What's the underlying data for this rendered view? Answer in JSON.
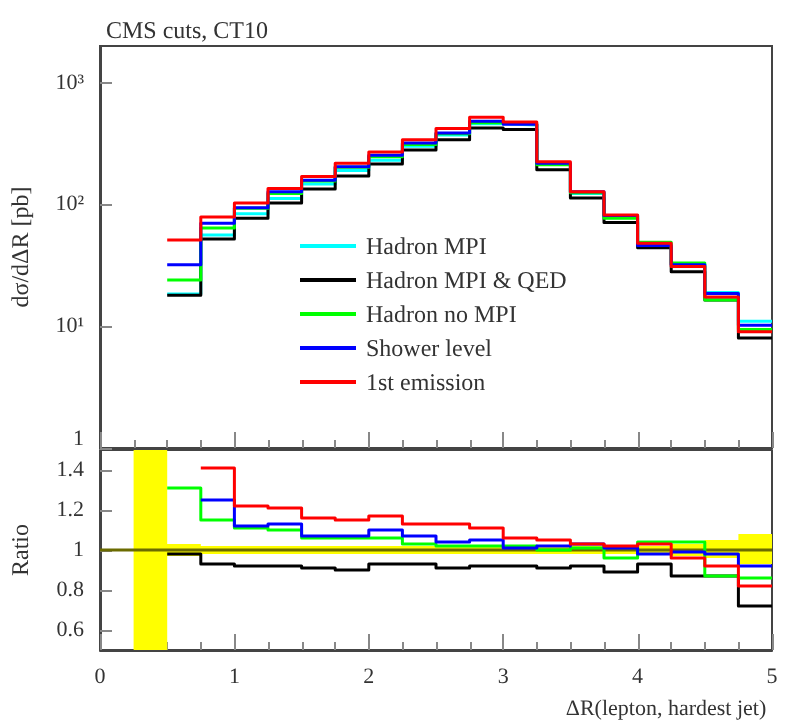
{
  "chart_data": [
    {
      "type": "histogram",
      "title": "CMS cuts, CT10",
      "ylabel": "dσ/dΔR [pb]",
      "log": "y",
      "legend": "bottom",
      "tick_labels": "y",
      "bins": [
        0.5,
        0.75,
        1,
        1.25,
        1.5,
        1.75,
        2,
        2.25,
        2.5,
        2.75,
        3,
        3.25,
        3.5,
        3.75,
        4,
        4.25,
        4.5,
        4.75,
        5
      ],
      "xlim": [
        0,
        5
      ],
      "xticks": [
        0,
        1,
        2,
        3,
        4,
        5
      ],
      "ylim": [
        1,
        2000
      ],
      "yticks": [
        {
          "value": 1,
          "label": "1"
        },
        {
          "value": 10,
          "label": "10¹"
        },
        {
          "value": 100,
          "label": "10²"
        },
        {
          "value": 1000,
          "label": "10³"
        }
      ],
      "series": [
        {
          "name": "Hadron MPI",
          "color": "#00ffff",
          "values": [
            18.4,
            56,
            84,
            112,
            147,
            190,
            231,
            300,
            371,
            460,
            450,
            213,
            123,
            80,
            47,
            32,
            18.9,
            11.0
          ]
        },
        {
          "name": "Hadron MPI & QED",
          "color": "#000000",
          "values": [
            18,
            52,
            77,
            103,
            134,
            171,
            215,
            280,
            339,
            425,
            413,
            193,
            113,
            71,
            44,
            28,
            16.4,
            8.0
          ]
        },
        {
          "name": "Hadron no MPI",
          "color": "#00ff00",
          "values": [
            24,
            64,
            93,
            123,
            156,
            202,
            246,
            310,
            380,
            468,
            458,
            212,
            125,
            77,
            49,
            33,
            16.4,
            9.4
          ]
        },
        {
          "name": "Shower level",
          "color": "#0000ff",
          "values": [
            32,
            70,
            94,
            127,
            158,
            204,
            253,
            320,
            386,
            482,
            456,
            218,
            127,
            81,
            46,
            32,
            18.6,
            10.2
          ]
        },
        {
          "name": "1st emission",
          "color": "#ff0000",
          "values": [
            51,
            79,
            103,
            135,
            170,
            218,
            270,
            339,
            420,
            520,
            476,
            224,
            127,
            82,
            48,
            31,
            17.4,
            9.0
          ]
        }
      ]
    },
    {
      "type": "step",
      "xlabel": "ΔR(lepton, hardest jet)",
      "ylabel": "Ratio",
      "xlim": [
        0,
        5
      ],
      "xticks": [
        0,
        1,
        2,
        3,
        4,
        5
      ],
      "ylim": [
        0.5,
        1.5
      ],
      "yticks": [
        0.6,
        0.8,
        1,
        1.2,
        1.4
      ],
      "series": [
        {
          "color": "#6b6b00",
          "x": [
            0,
            0.25,
            0.5,
            0.75,
            1,
            1.25,
            1.5,
            1.75,
            2,
            2.25,
            2.5,
            2.75,
            3,
            3.25,
            3.5,
            3.75,
            4,
            4.25,
            4.5,
            4.75,
            5
          ],
          "values": [
            1,
            1,
            1,
            1,
            1,
            1,
            1,
            1,
            1,
            1,
            1,
            1,
            1,
            1,
            1,
            1,
            1,
            1,
            1,
            1,
            1
          ],
          "lower": [
            null,
            0.5,
            0.97,
            0.98,
            0.98,
            0.98,
            0.98,
            0.98,
            0.98,
            0.98,
            0.98,
            0.98,
            0.98,
            0.98,
            0.98,
            0.98,
            0.98,
            0.97,
            0.96,
            0.93,
            0.93
          ],
          "upper": [
            null,
            1.5,
            1.03,
            1.02,
            1.02,
            1.02,
            1.02,
            1.02,
            1.02,
            1.02,
            1.02,
            1.02,
            1.02,
            1.02,
            1.02,
            1.02,
            1.02,
            1.03,
            1.05,
            1.08,
            1.08
          ]
        },
        {
          "color": "#000000",
          "x": [
            0.5,
            0.75,
            1,
            1.25,
            1.5,
            1.75,
            2,
            2.25,
            2.5,
            2.75,
            3,
            3.25,
            3.5,
            3.75,
            4,
            4.25,
            4.5,
            4.75,
            5
          ],
          "values": [
            0.98,
            0.93,
            0.92,
            0.92,
            0.91,
            0.9,
            0.93,
            0.93,
            0.91,
            0.92,
            0.92,
            0.91,
            0.92,
            0.89,
            0.93,
            0.87,
            0.87,
            0.72,
            0.72
          ]
        },
        {
          "color": "#00ff00",
          "x": [
            0.5,
            0.75,
            1,
            1.25,
            1.5,
            1.75,
            2,
            2.25,
            2.5,
            2.75,
            3,
            3.25,
            3.5,
            3.75,
            4,
            4.25,
            4.5,
            4.75,
            5
          ],
          "values": [
            1.31,
            1.15,
            1.11,
            1.1,
            1.06,
            1.06,
            1.06,
            1.03,
            1.02,
            1.02,
            1.02,
            1.0,
            1.01,
            0.96,
            1.04,
            1.04,
            0.87,
            0.86,
            0.86
          ]
        },
        {
          "color": "#0000ff",
          "x": [
            0.75,
            1,
            1.25,
            1.5,
            1.75,
            2,
            2.25,
            2.5,
            2.75,
            3,
            3.25,
            3.5,
            3.75,
            4,
            4.25,
            4.5,
            4.75,
            5
          ],
          "values": [
            1.25,
            1.12,
            1.13,
            1.07,
            1.07,
            1.1,
            1.07,
            1.04,
            1.05,
            1.01,
            1.02,
            1.03,
            1.01,
            0.98,
            0.99,
            0.98,
            0.92,
            0.92
          ]
        },
        {
          "color": "#ff0000",
          "x": [
            0.75,
            1,
            1.25,
            1.5,
            1.75,
            2,
            2.25,
            2.5,
            2.75,
            3,
            3.25,
            3.5,
            3.75,
            4,
            4.25,
            4.5,
            4.75,
            5
          ],
          "values": [
            1.41,
            1.22,
            1.21,
            1.16,
            1.15,
            1.17,
            1.13,
            1.13,
            1.11,
            1.06,
            1.05,
            1.03,
            1.02,
            1.03,
            0.96,
            0.92,
            0.82,
            0.82
          ]
        }
      ]
    }
  ]
}
